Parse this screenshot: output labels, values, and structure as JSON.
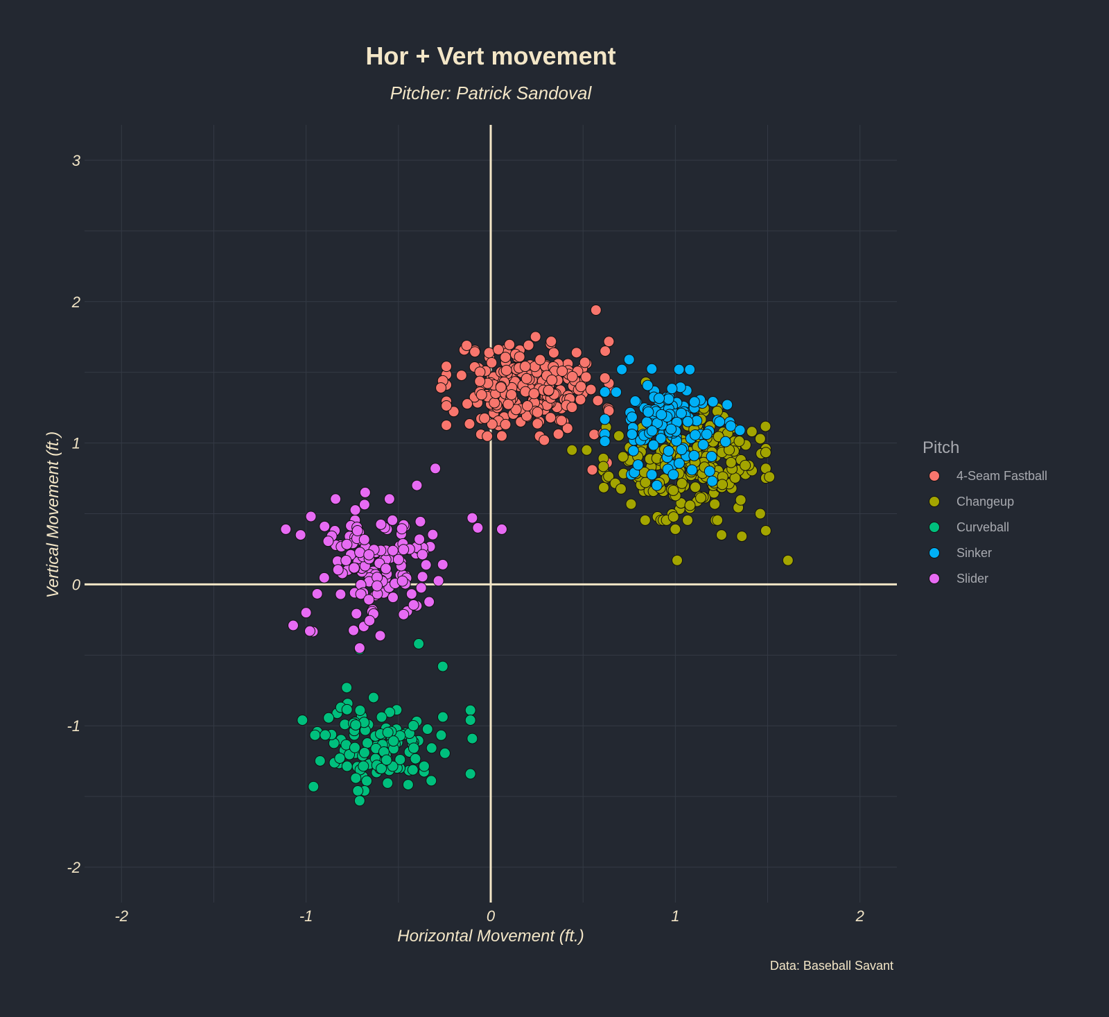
{
  "chart_data": {
    "type": "scatter",
    "title": "Hor + Vert movement",
    "subtitle": "Pitcher: Patrick Sandoval",
    "xlabel": "Horizontal Movement (ft.)",
    "ylabel": "Vertical Movement (ft.)",
    "caption": "Data: Baseball Savant",
    "xlim": [
      -2.2,
      2.2
    ],
    "ylim": [
      -2.25,
      3.25
    ],
    "xticks": [
      -2,
      -1,
      0,
      1,
      2
    ],
    "yticks": [
      -2,
      -1,
      0,
      1,
      2,
      3
    ],
    "legend_title": "Pitch",
    "legend_position": "right",
    "series": [
      {
        "name": "4-Seam Fastball",
        "color": "#F8766D",
        "center": [
          0.2,
          1.4
        ],
        "spread": [
          0.2,
          0.16
        ],
        "n": 220,
        "seed": 11,
        "extra": [
          [
            0.57,
            1.94
          ],
          [
            0.62,
            1.65
          ],
          [
            -0.13,
            1.69
          ],
          [
            0.58,
            1.3
          ],
          [
            0.55,
            0.81
          ],
          [
            0.63,
            0.86
          ],
          [
            -0.26,
            1.44
          ],
          [
            0.56,
            1.06
          ],
          [
            0.61,
            1.07
          ],
          [
            0.06,
            1.05
          ],
          [
            0.29,
            1.02
          ],
          [
            -0.27,
            1.39
          ]
        ]
      },
      {
        "name": "Changeup",
        "color": "#A3A500",
        "center": [
          1.05,
          0.85
        ],
        "spread": [
          0.2,
          0.18
        ],
        "n": 230,
        "seed": 23,
        "extra": [
          [
            1.61,
            0.17
          ],
          [
            1.01,
            0.17
          ],
          [
            1.51,
            0.76
          ],
          [
            1.49,
            0.38
          ],
          [
            1.46,
            1.03
          ],
          [
            0.44,
            0.95
          ],
          [
            0.52,
            0.95
          ],
          [
            1.36,
            0.34
          ],
          [
            0.84,
            1.43
          ],
          [
            1.25,
            0.35
          ],
          [
            1.46,
            0.5
          ],
          [
            1.0,
            0.39
          ]
        ]
      },
      {
        "name": "Curveball",
        "color": "#00BF7D",
        "center": [
          -0.6,
          -1.13
        ],
        "spread": [
          0.16,
          0.15
        ],
        "n": 105,
        "seed": 37,
        "extra": [
          [
            -0.71,
            -0.46
          ],
          [
            -0.39,
            -0.42
          ],
          [
            -0.26,
            -0.58
          ],
          [
            -1.02,
            -0.96
          ],
          [
            -0.11,
            -1.34
          ],
          [
            -0.11,
            -0.89
          ],
          [
            -0.1,
            -1.09
          ],
          [
            -0.71,
            -1.53
          ],
          [
            -0.96,
            -1.43
          ],
          [
            -0.11,
            -0.96
          ],
          [
            -0.78,
            -0.73
          ]
        ]
      },
      {
        "name": "Sinker",
        "color": "#00B0F6",
        "center": [
          0.97,
          1.15
        ],
        "spread": [
          0.16,
          0.17
        ],
        "n": 120,
        "seed": 53,
        "extra": [
          [
            0.71,
            1.52
          ],
          [
            0.75,
            1.59
          ],
          [
            0.68,
            1.36
          ],
          [
            1.02,
            1.52
          ],
          [
            1.3,
            1.12
          ],
          [
            1.35,
            1.09
          ],
          [
            0.9,
            0.7
          ],
          [
            1.2,
            0.73
          ]
        ]
      },
      {
        "name": "Slider",
        "color": "#E76BF3",
        "center": [
          -0.6,
          0.12
        ],
        "spread": [
          0.17,
          0.22
        ],
        "n": 140,
        "seed": 71,
        "extra": [
          [
            -1.11,
            0.39
          ],
          [
            -1.03,
            0.35
          ],
          [
            -1.07,
            -0.29
          ],
          [
            -0.3,
            0.82
          ],
          [
            0.06,
            0.39
          ],
          [
            -0.07,
            0.4
          ],
          [
            -0.1,
            0.47
          ],
          [
            -0.26,
            0.14
          ],
          [
            -0.4,
            0.7
          ],
          [
            -0.68,
            0.65
          ],
          [
            -0.9,
            0.41
          ],
          [
            -0.71,
            -0.45
          ],
          [
            -0.98,
            -0.33
          ],
          [
            -1.0,
            -0.2
          ]
        ]
      }
    ]
  }
}
